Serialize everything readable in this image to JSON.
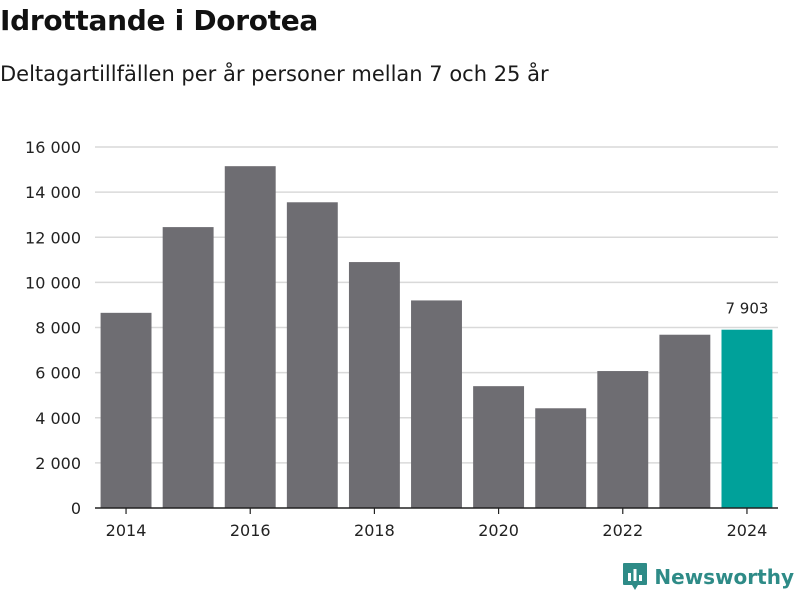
{
  "colors": {
    "bar": "#6e6d72",
    "highlight": "#00a19a",
    "grid": "#d9d9d9",
    "axis": "#222222",
    "brand": "#2e8b87"
  },
  "brand": {
    "name": "Newsworthy"
  },
  "chart_data": {
    "type": "bar",
    "title": "Idrottande i Dorotea",
    "subtitle": "Deltagartillfällen per år personer mellan 7 och 25 år",
    "categories": [
      "2014",
      "2015",
      "2016",
      "2017",
      "2018",
      "2019",
      "2020",
      "2021",
      "2022",
      "2023",
      "2024"
    ],
    "values": [
      8650,
      12450,
      15150,
      13550,
      10900,
      9200,
      5400,
      4420,
      6070,
      7680,
      7903
    ],
    "highlight_index": 10,
    "data_labels": [
      {
        "index": 10,
        "text": "7 903"
      }
    ],
    "x_tick_labels": [
      "2014",
      "2016",
      "2018",
      "2020",
      "2022",
      "2024"
    ],
    "y_ticks": [
      0,
      2000,
      4000,
      6000,
      8000,
      10000,
      12000,
      14000,
      16000
    ],
    "y_tick_labels": [
      "0",
      "2 000",
      "4 000",
      "6 000",
      "8 000",
      "10 000",
      "12 000",
      "14 000",
      "16 000"
    ],
    "ylim": [
      0,
      16000
    ],
    "xlabel": "",
    "ylabel": "",
    "grid": true
  }
}
